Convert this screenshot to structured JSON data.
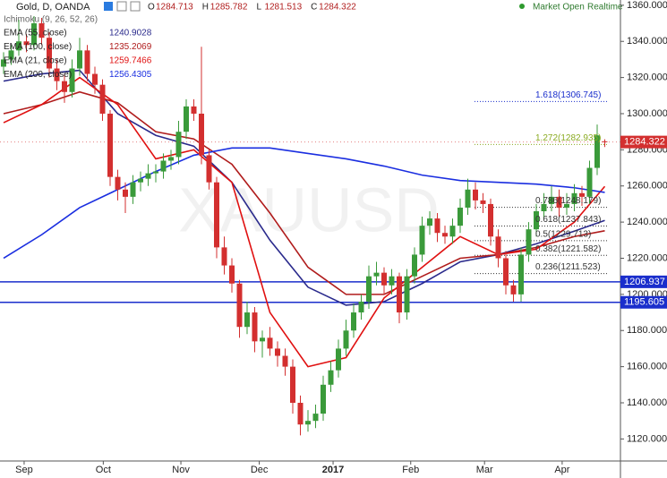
{
  "chart_data": {
    "type": "candlestick",
    "title": "Gold, D, OANDA",
    "status": "Market Open",
    "feed": "Realtime",
    "watermark": "XAUUSD",
    "ohlc_labels": [
      "O",
      "H",
      "L",
      "C"
    ],
    "ohlc": [
      1284.713,
      1285.782,
      1281.513,
      1284.322
    ],
    "up_color": "#3a9a3a",
    "down_color": "#d32f2f",
    "candles": [
      [
        1326,
        1334,
        1322,
        1330
      ],
      [
        1330,
        1338,
        1327,
        1335
      ],
      [
        1335,
        1352,
        1332,
        1340
      ],
      [
        1340,
        1344,
        1334,
        1338
      ],
      [
        1338,
        1354,
        1335,
        1350
      ],
      [
        1350,
        1353,
        1338,
        1342
      ],
      [
        1342,
        1345,
        1320,
        1325
      ],
      [
        1325,
        1330,
        1313,
        1318
      ],
      [
        1318,
        1322,
        1306,
        1312
      ],
      [
        1312,
        1330,
        1309,
        1325
      ],
      [
        1325,
        1342,
        1321,
        1335
      ],
      [
        1335,
        1338,
        1318,
        1322
      ],
      [
        1322,
        1326,
        1311,
        1316
      ],
      [
        1316,
        1319,
        1296,
        1300
      ],
      [
        1300,
        1302,
        1260,
        1265
      ],
      [
        1265,
        1269,
        1252,
        1258
      ],
      [
        1258,
        1262,
        1245,
        1254
      ],
      [
        1254,
        1266,
        1250,
        1262
      ],
      [
        1262,
        1268,
        1257,
        1264
      ],
      [
        1264,
        1272,
        1260,
        1267
      ],
      [
        1267,
        1272,
        1262,
        1268
      ],
      [
        1268,
        1278,
        1264,
        1274
      ],
      [
        1274,
        1280,
        1269,
        1276
      ],
      [
        1276,
        1296,
        1272,
        1290
      ],
      [
        1290,
        1308,
        1286,
        1304
      ],
      [
        1304,
        1308,
        1296,
        1300
      ],
      [
        1300,
        1337,
        1272,
        1277
      ],
      [
        1277,
        1281,
        1258,
        1262
      ],
      [
        1262,
        1265,
        1220,
        1226
      ],
      [
        1226,
        1232,
        1211,
        1216
      ],
      [
        1216,
        1220,
        1201,
        1206
      ],
      [
        1206,
        1208,
        1176,
        1182
      ],
      [
        1182,
        1196,
        1178,
        1190
      ],
      [
        1190,
        1193,
        1168,
        1174
      ],
      [
        1174,
        1180,
        1165,
        1176
      ],
      [
        1176,
        1182,
        1166,
        1170
      ],
      [
        1170,
        1174,
        1160,
        1166
      ],
      [
        1166,
        1170,
        1155,
        1160
      ],
      [
        1160,
        1164,
        1134,
        1140
      ],
      [
        1140,
        1144,
        1122,
        1128
      ],
      [
        1128,
        1136,
        1124,
        1130
      ],
      [
        1130,
        1139,
        1126,
        1134
      ],
      [
        1134,
        1155,
        1130,
        1150
      ],
      [
        1150,
        1163,
        1146,
        1158
      ],
      [
        1158,
        1175,
        1154,
        1170
      ],
      [
        1170,
        1186,
        1166,
        1180
      ],
      [
        1180,
        1195,
        1176,
        1190
      ],
      [
        1190,
        1200,
        1186,
        1196
      ],
      [
        1196,
        1216,
        1192,
        1210
      ],
      [
        1210,
        1218,
        1205,
        1212
      ],
      [
        1212,
        1215,
        1200,
        1205
      ],
      [
        1205,
        1214,
        1200,
        1210
      ],
      [
        1210,
        1212,
        1184,
        1190
      ],
      [
        1190,
        1214,
        1186,
        1210
      ],
      [
        1210,
        1226,
        1206,
        1222
      ],
      [
        1222,
        1243,
        1218,
        1238
      ],
      [
        1238,
        1246,
        1233,
        1242
      ],
      [
        1242,
        1245,
        1229,
        1234
      ],
      [
        1234,
        1238,
        1228,
        1232
      ],
      [
        1232,
        1242,
        1228,
        1238
      ],
      [
        1238,
        1253,
        1234,
        1248
      ],
      [
        1248,
        1264,
        1244,
        1258
      ],
      [
        1258,
        1262,
        1247,
        1252
      ],
      [
        1252,
        1256,
        1245,
        1250
      ],
      [
        1250,
        1253,
        1227,
        1232
      ],
      [
        1232,
        1236,
        1215,
        1220
      ],
      [
        1220,
        1224,
        1200,
        1205
      ],
      [
        1205,
        1208,
        1196,
        1200
      ],
      [
        1200,
        1226,
        1196,
        1222
      ],
      [
        1222,
        1240,
        1218,
        1236
      ],
      [
        1236,
        1250,
        1232,
        1246
      ],
      [
        1246,
        1256,
        1242,
        1250
      ],
      [
        1250,
        1260,
        1246,
        1254
      ],
      [
        1254,
        1258,
        1243,
        1248
      ],
      [
        1248,
        1256,
        1244,
        1250
      ],
      [
        1250,
        1261,
        1246,
        1256
      ],
      [
        1256,
        1260,
        1249,
        1254
      ],
      [
        1254,
        1274,
        1250,
        1270
      ],
      [
        1270,
        1294,
        1266,
        1288
      ],
      [
        1284.713,
        1285.782,
        1281.513,
        1284.322
      ]
    ],
    "indicator": "Ichimoku (9, 26, 52, 26)",
    "series": [
      {
        "name": "EMA (55, close)",
        "color": "#2a2a8c",
        "last": 1240.9028,
        "x": [
          0,
          5,
          10,
          15,
          20,
          25,
          30,
          35,
          40,
          45,
          50,
          55,
          60,
          65,
          70,
          75,
          79
        ],
        "values": [
          1318,
          1322,
          1324,
          1300,
          1288,
          1282,
          1262,
          1230,
          1204,
          1194,
          1196,
          1206,
          1218,
          1222,
          1228,
          1235,
          1240.9028
        ]
      },
      {
        "name": "EMA (100, close)",
        "color": "#b01c1c",
        "last": 1235.2069,
        "x": [
          0,
          5,
          10,
          15,
          20,
          25,
          30,
          35,
          40,
          45,
          50,
          55,
          60,
          65,
          70,
          75,
          79
        ],
        "values": [
          1300,
          1305,
          1312,
          1306,
          1290,
          1286,
          1272,
          1245,
          1215,
          1200,
          1200,
          1210,
          1220,
          1222,
          1226,
          1232,
          1235.2069
        ]
      },
      {
        "name": "EMA (21, close)",
        "color": "#e01010",
        "last": 1259.7466,
        "x": [
          0,
          5,
          10,
          15,
          20,
          25,
          30,
          35,
          40,
          45,
          50,
          55,
          60,
          65,
          70,
          75,
          79
        ],
        "values": [
          1295,
          1305,
          1320,
          1305,
          1275,
          1280,
          1262,
          1190,
          1160,
          1165,
          1198,
          1215,
          1232,
          1222,
          1225,
          1240,
          1259.7466
        ]
      },
      {
        "name": "EMA (200, close)",
        "color": "#1a2ee0",
        "last": 1256.4305,
        "x": [
          0,
          5,
          10,
          15,
          20,
          25,
          30,
          35,
          40,
          45,
          50,
          55,
          60,
          65,
          70,
          75,
          79
        ],
        "values": [
          1220,
          1233,
          1248,
          1258,
          1268,
          1277,
          1281,
          1281,
          1278,
          1275,
          1271,
          1266,
          1263,
          1262,
          1261,
          1259,
          1256.4305
        ]
      }
    ],
    "hlines": [
      1206.937,
      1195.605
    ],
    "hline_color": "#1a2ecc",
    "fib_levels": [
      {
        "value": 1306.745,
        "label": "1.618(1306.745)",
        "color": "#1a2ecc"
      },
      {
        "value": 1282.935,
        "label": "1.272(1282.935)",
        "color": "#8aaa20"
      },
      {
        "value": 1248.179,
        "label": "0.786(1248.179)",
        "color": "#333333"
      },
      {
        "value": 1237.843,
        "label": "0.618(1237.843)",
        "color": "#333333"
      },
      {
        "value": 1229.713,
        "label": "0.5(1229.713)",
        "color": "#333333"
      },
      {
        "value": 1221.582,
        "label": "0.382(1221.582)",
        "color": "#333333"
      },
      {
        "value": 1211.523,
        "label": "0.236(1211.523)",
        "color": "#333333"
      }
    ],
    "ylim": [
      1107.8,
      1362.9
    ],
    "yticks": [
      {
        "value": 1120,
        "label": "1120.000"
      },
      {
        "value": 1140,
        "label": "1140.000"
      },
      {
        "value": 1160,
        "label": "1160.000"
      },
      {
        "value": 1180,
        "label": "1180.000"
      },
      {
        "value": 1200,
        "label": "1200.000"
      },
      {
        "value": 1220,
        "label": "1220.000"
      },
      {
        "value": 1240,
        "label": "1240.000"
      },
      {
        "value": 1260,
        "label": "1260.000"
      },
      {
        "value": 1280,
        "label": "1280.000"
      },
      {
        "value": 1300,
        "label": "1300.000"
      },
      {
        "value": 1320,
        "label": "1320.000"
      },
      {
        "value": 1340,
        "label": "1340.000"
      },
      {
        "value": 1360,
        "label": "1360.000"
      }
    ],
    "xticks": [
      {
        "value": 2.7,
        "label": "Sep"
      },
      {
        "value": 13.1,
        "label": "Oct"
      },
      {
        "value": 23.3,
        "label": "Nov"
      },
      {
        "value": 33.6,
        "label": "Dec"
      },
      {
        "value": 43.3,
        "label": "2017"
      },
      {
        "value": 53.5,
        "label": "Feb"
      },
      {
        "value": 63.2,
        "label": "Mar"
      },
      {
        "value": 73.4,
        "label": "Apr"
      }
    ],
    "grid": false
  }
}
